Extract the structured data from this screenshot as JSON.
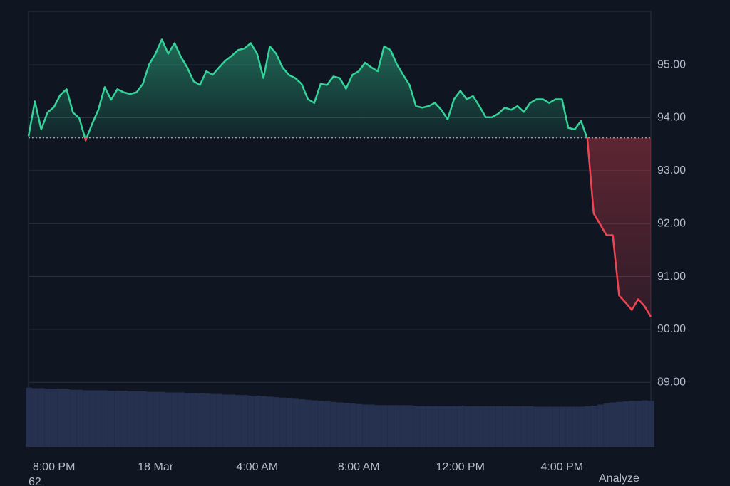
{
  "chart_data": {
    "type": "line",
    "series": [
      {
        "color": "#34d399",
        "down_color": "#f04452",
        "values": [
          93.65,
          94.31,
          93.78,
          94.1,
          94.2,
          94.43,
          94.54,
          94.1,
          93.99,
          93.57,
          93.88,
          94.15,
          94.58,
          94.34,
          94.54,
          94.48,
          94.45,
          94.48,
          94.64,
          95.01,
          95.21,
          95.48,
          95.21,
          95.41,
          95.15,
          94.95,
          94.69,
          94.62,
          94.88,
          94.81,
          94.95,
          95.08,
          95.17,
          95.28,
          95.31,
          95.41,
          95.21,
          94.75,
          95.35,
          95.21,
          94.95,
          94.81,
          94.75,
          94.64,
          94.35,
          94.28,
          94.64,
          94.62,
          94.78,
          94.75,
          94.55,
          94.81,
          94.88,
          95.04,
          94.95,
          94.88,
          95.35,
          95.28,
          95.01,
          94.81,
          94.62,
          94.22,
          94.19,
          94.22,
          94.28,
          94.15,
          93.97,
          94.35,
          94.51,
          94.35,
          94.41,
          94.22,
          94.01,
          94.01,
          94.08,
          94.19,
          94.15,
          94.22,
          94.11,
          94.28,
          94.35,
          94.35,
          94.28,
          94.35,
          94.35,
          93.81,
          93.78,
          93.94,
          93.6,
          92.19,
          91.99,
          91.78,
          91.78,
          90.64,
          90.51,
          90.37,
          90.57,
          90.44,
          90.24
        ]
      },
      {
        "color": "#26304f",
        "values": [
          88.9,
          88.89,
          88.89,
          88.88,
          88.88,
          88.87,
          88.87,
          88.86,
          88.86,
          88.85,
          88.85,
          88.85,
          88.85,
          88.84,
          88.84,
          88.84,
          88.83,
          88.83,
          88.83,
          88.82,
          88.82,
          88.82,
          88.81,
          88.81,
          88.81,
          88.8,
          88.8,
          88.79,
          88.79,
          88.78,
          88.78,
          88.77,
          88.77,
          88.76,
          88.76,
          88.75,
          88.75,
          88.74,
          88.73,
          88.72,
          88.71,
          88.7,
          88.69,
          88.68,
          88.67,
          88.66,
          88.65,
          88.64,
          88.63,
          88.62,
          88.61,
          88.6,
          88.59,
          88.58,
          88.58,
          88.57,
          88.57,
          88.57,
          88.57,
          88.57,
          88.57,
          88.56,
          88.56,
          88.56,
          88.56,
          88.56,
          88.56,
          88.56,
          88.56,
          88.55,
          88.55,
          88.55,
          88.55,
          88.55,
          88.55,
          88.55,
          88.55,
          88.55,
          88.55,
          88.55,
          88.54,
          88.54,
          88.54,
          88.54,
          88.54,
          88.54,
          88.54,
          88.54,
          88.55,
          88.56,
          88.58,
          88.6,
          88.62,
          88.63,
          88.64,
          88.65,
          88.65,
          88.66,
          88.65
        ]
      }
    ],
    "baseline": 93.62,
    "xlim": [
      0,
      98
    ],
    "xticks": [
      {
        "value": 4,
        "label": "8:00 PM"
      },
      {
        "value": 20,
        "label": "18 Mar"
      },
      {
        "value": 36,
        "label": "4:00 AM"
      },
      {
        "value": 52,
        "label": "8:00 AM"
      },
      {
        "value": 68,
        "label": "12:00 PM"
      },
      {
        "value": 84,
        "label": "4:00 PM"
      }
    ],
    "ylim": [
      87.78,
      96.01
    ],
    "yticks": [
      {
        "value": 89,
        "label": "89.00"
      },
      {
        "value": 90,
        "label": "90.00"
      },
      {
        "value": 91,
        "label": "91.00"
      },
      {
        "value": 92,
        "label": "92.00"
      },
      {
        "value": 93,
        "label": "93.00"
      },
      {
        "value": 94,
        "label": "94.00"
      },
      {
        "value": 95,
        "label": "95.00"
      }
    ],
    "grid": true
  },
  "footer": {
    "left": "62",
    "right": "Analyze"
  }
}
